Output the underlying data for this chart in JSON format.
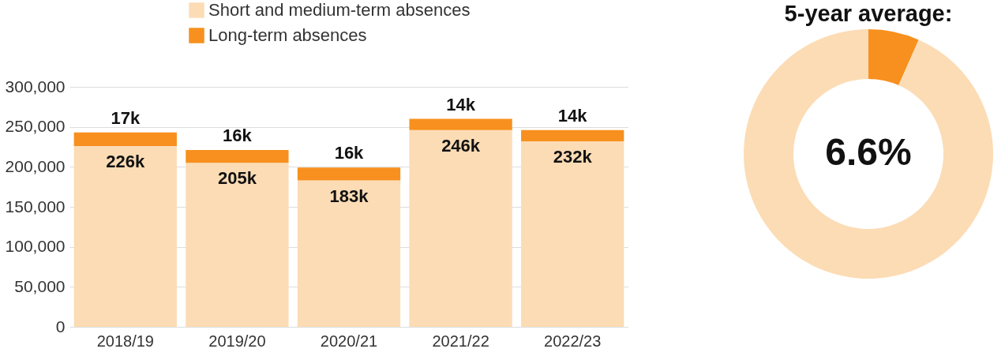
{
  "chart_data": [
    {
      "type": "bar",
      "stacked": true,
      "categories": [
        "2018/19",
        "2019/20",
        "2020/21",
        "2021/22",
        "2022/23"
      ],
      "series": [
        {
          "name": "Short and medium-term absences",
          "color": "#fcdcb5",
          "values": [
            226000,
            205000,
            183000,
            246000,
            232000
          ],
          "value_labels": [
            "226k",
            "205k",
            "183k",
            "246k",
            "232k"
          ]
        },
        {
          "name": "Long-term absences",
          "color": "#f7901e",
          "values": [
            17000,
            16000,
            16000,
            14000,
            14000
          ],
          "value_labels": [
            "17k",
            "16k",
            "16k",
            "14k",
            "14k"
          ]
        }
      ],
      "ylim": [
        0,
        300000
      ],
      "yticks": [
        0,
        {
          "value": 50000,
          "label": "50,000"
        },
        {
          "value": 100000,
          "label": "100,000"
        },
        {
          "value": 150000,
          "label": "150,000"
        },
        {
          "value": 200000,
          "label": "200,000"
        },
        {
          "value": 250000,
          "label": "250,000"
        },
        {
          "value": 300000,
          "label": "300,000"
        }
      ],
      "grid": "y",
      "legend": "top left"
    },
    {
      "type": "donut",
      "title": "5-year average:",
      "categories": [
        null,
        null
      ],
      "values": [
        6.6,
        93.4
      ],
      "colors": [
        "#f7901e",
        "#fcdcb5"
      ],
      "annotations": [
        "6.6%"
      ]
    }
  ]
}
